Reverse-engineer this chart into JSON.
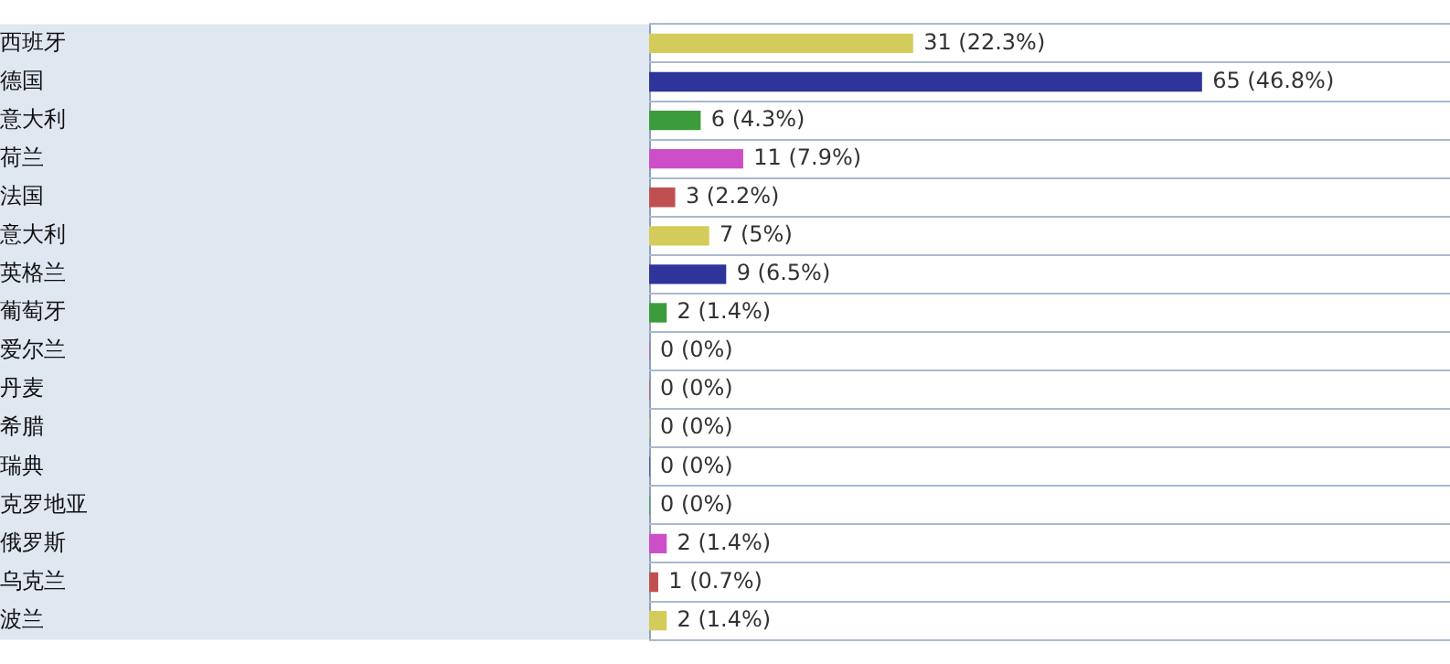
{
  "chart_data": {
    "type": "bar",
    "orientation": "horizontal",
    "grid": "y",
    "categories": [
      "西班牙",
      "德国",
      "意大利",
      "荷兰",
      "法国",
      "意大利",
      "英格兰",
      "葡萄牙",
      "爱尔兰",
      "丹麦",
      "希腊",
      "瑞典",
      "克罗地亚",
      "俄罗斯",
      "乌克兰",
      "波兰"
    ],
    "values": [
      31,
      65,
      6,
      11,
      3,
      7,
      9,
      2,
      0,
      0,
      0,
      0,
      0,
      2,
      1,
      2
    ],
    "colors": [
      "#d4cc5a",
      "#2e3499",
      "#3c9c3c",
      "#cc4fc8",
      "#c05050",
      "#d4cc5a",
      "#2e3499",
      "#3c9c3c",
      "#cc4fc8",
      "#c05050",
      "#d4cc5a",
      "#2e3499",
      "#3c9c3c",
      "#cc4fc8",
      "#c05050",
      "#d4cc5a"
    ],
    "value_labels": [
      "31 (22.3%)",
      "65 (46.8%)",
      "6 (4.3%)",
      "11 (7.9%)",
      "3 (2.2%)",
      "7 (5%)",
      "9 (6.5%)",
      "2 (1.4%)",
      "0 (0%)",
      "0 (0%)",
      "0 (0%)",
      "0 (0%)",
      "0 (0%)",
      "2 (1.4%)",
      "1 (0.7%)",
      "2 (1.4%)"
    ]
  }
}
